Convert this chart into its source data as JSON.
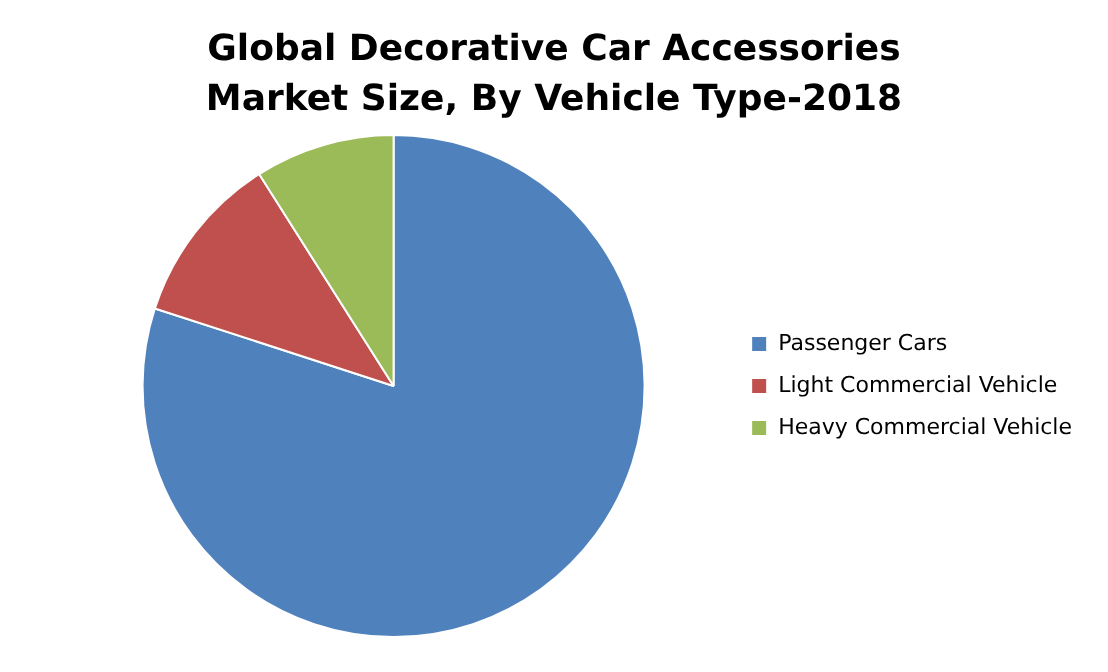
{
  "chart_data": {
    "type": "pie",
    "title": "Global Decorative Car Accessories Market Size, By Vehicle Type-2018",
    "categories": [
      "Passenger Cars",
      "Light Commercial Vehicle",
      "Heavy Commercial Vehicle"
    ],
    "values": [
      80,
      11,
      9
    ],
    "colors": [
      "#4f81bd",
      "#c0504d",
      "#9bbb59"
    ],
    "legend": "right"
  }
}
